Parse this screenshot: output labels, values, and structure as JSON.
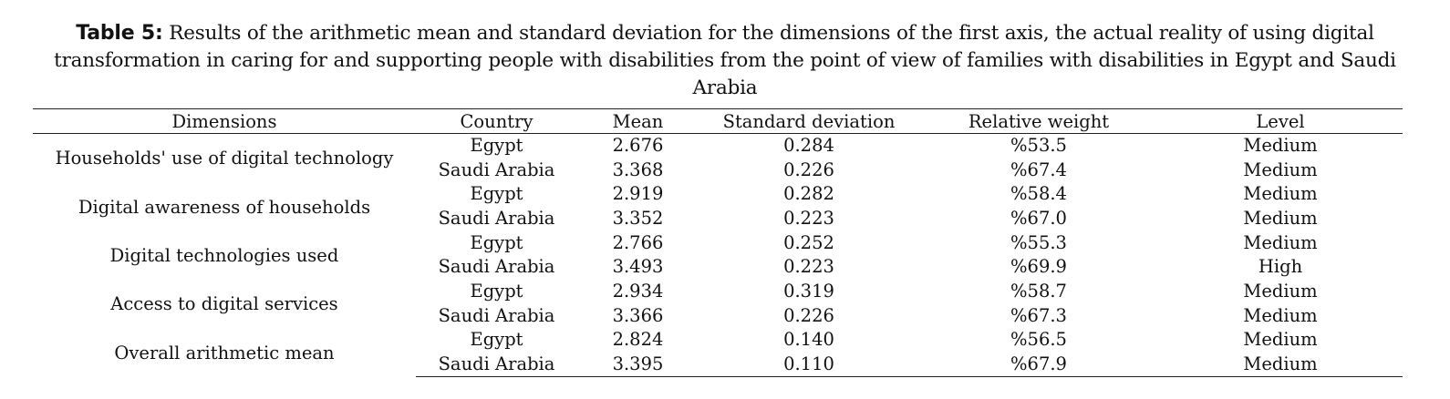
{
  "caption": {
    "label": "Table 5:",
    "text": " Results of the arithmetic mean and standard deviation for the dimensions of the first axis, the actual reality of using digital transformation in caring for and supporting people with disabilities from the point of view of families with disabilities in Egypt and Saudi Arabia"
  },
  "table": {
    "headers": [
      "Dimensions",
      "Country",
      "Mean",
      "Standard deviation",
      "Relative weight",
      "Level"
    ],
    "groups": [
      {
        "dimension": "Households' use of digital technology",
        "rows": [
          {
            "country": "Egypt",
            "mean": "2.676",
            "sd": "0.284",
            "weight": "%53.5",
            "level": "Medium"
          },
          {
            "country": "Saudi Arabia",
            "mean": "3.368",
            "sd": "0.226",
            "weight": "%67.4",
            "level": "Medium"
          }
        ]
      },
      {
        "dimension": "Digital awareness of households",
        "rows": [
          {
            "country": "Egypt",
            "mean": "2.919",
            "sd": "0.282",
            "weight": "%58.4",
            "level": "Medium"
          },
          {
            "country": "Saudi Arabia",
            "mean": "3.352",
            "sd": "0.223",
            "weight": "%67.0",
            "level": "Medium"
          }
        ]
      },
      {
        "dimension": "Digital technologies used",
        "rows": [
          {
            "country": "Egypt",
            "mean": "2.766",
            "sd": "0.252",
            "weight": "%55.3",
            "level": "Medium"
          },
          {
            "country": "Saudi Arabia",
            "mean": "3.493",
            "sd": "0.223",
            "weight": "%69.9",
            "level": "High"
          }
        ]
      },
      {
        "dimension": "Access to digital services",
        "rows": [
          {
            "country": "Egypt",
            "mean": "2.934",
            "sd": "0.319",
            "weight": "%58.7",
            "level": "Medium"
          },
          {
            "country": "Saudi Arabia",
            "mean": "3.366",
            "sd": "0.226",
            "weight": "%67.3",
            "level": "Medium"
          }
        ]
      },
      {
        "dimension": "Overall arithmetic mean",
        "rows": [
          {
            "country": "Egypt",
            "mean": "2.824",
            "sd": "0.140",
            "weight": "%56.5",
            "level": "Medium"
          },
          {
            "country": "Saudi Arabia",
            "mean": "3.395",
            "sd": "0.110",
            "weight": "%67.9",
            "level": "Medium"
          }
        ]
      }
    ]
  }
}
